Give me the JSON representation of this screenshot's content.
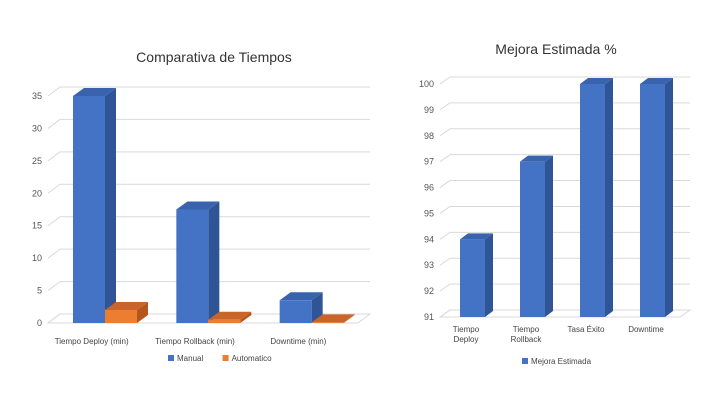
{
  "colors": {
    "manual": "#4472C4",
    "manual_side": "#2F5597",
    "manual_top": "#3A63AD",
    "automatico": "#ED7D31",
    "automatico_side": "#B5571D",
    "automatico_top": "#C9652A",
    "grid": "#D9D9D9"
  },
  "chart_data": [
    {
      "type": "bar",
      "style": "3d-clustered-column",
      "title": "Comparativa de Tiempos",
      "categories": [
        "Tiempo Deploy (min)",
        "Tiempo Rollback (min)",
        "Downtime (min)"
      ],
      "series": [
        {
          "name": "Manual",
          "values": [
            35,
            17.5,
            3.5
          ]
        },
        {
          "name": "Automatico",
          "values": [
            2,
            0.5,
            0.1
          ]
        }
      ],
      "ylim": [
        0,
        35
      ],
      "yticks": [
        0,
        5,
        10,
        15,
        20,
        25,
        30,
        35
      ],
      "grid": true,
      "legend": "bottom"
    },
    {
      "type": "bar",
      "style": "3d-column",
      "title": "Mejora Estimada %",
      "categories": [
        "Tiempo Deploy",
        "Tiempo Rollback",
        "Tasa Éxito",
        "Downtime"
      ],
      "series": [
        {
          "name": "Mejora Estimada",
          "values": [
            94,
            97,
            100,
            100
          ]
        }
      ],
      "ylim": [
        91,
        100
      ],
      "yticks": [
        91,
        92,
        93,
        94,
        95,
        96,
        97,
        98,
        99,
        100
      ],
      "grid": true,
      "legend": "bottom"
    }
  ]
}
